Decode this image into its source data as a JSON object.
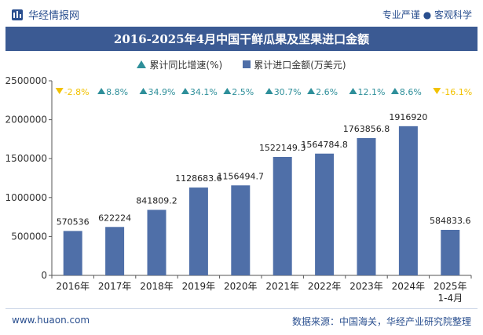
{
  "header": {
    "brand": "华经情报网",
    "slogan": "专业严谨 ● 客观科学"
  },
  "chart_data": {
    "type": "bar+markers",
    "title": "2016-2025年4月中国干鲜瓜果及坚果进口金额",
    "legend": {
      "growth": "累计同比增速(%)",
      "amount": "累计进口金额(万美元)"
    },
    "categories": [
      "2016年",
      "2017年",
      "2018年",
      "2019年",
      "2020年",
      "2021年",
      "2022年",
      "2023年",
      "2024年",
      "2025年\n1-4月"
    ],
    "values": [
      570536,
      622224,
      841809.2,
      1128683.6,
      1156494.7,
      1522149.3,
      1564784.8,
      1763856.8,
      1916920,
      584833.6
    ],
    "value_labels": [
      "570536",
      "622224",
      "841809.2",
      "1128683.6",
      "1156494.7",
      "1522149.3",
      "1564784.8",
      "1763856.8",
      "1916920",
      "584833.6"
    ],
    "growth": [
      "-2.8%",
      "8.8%",
      "34.9%",
      "34.1%",
      "2.5%",
      "30.7%",
      "2.6%",
      "12.1%",
      "8.6%",
      "-16.1%"
    ],
    "growth_values": [
      -2.8,
      8.8,
      34.9,
      34.1,
      2.5,
      30.7,
      2.6,
      12.1,
      8.6,
      -16.1
    ],
    "ylim": [
      0,
      2500000
    ],
    "yticks": [
      "0",
      "500000",
      "1000000",
      "1500000",
      "2000000",
      "2500000"
    ],
    "colors": {
      "bar": "#4f6fa8",
      "up": "#2e8f9a",
      "down": "#f2c200",
      "title_bg": "#3b5a93"
    }
  },
  "footer": {
    "site": "www.huaon.com",
    "source": "数据来源：中国海关，华经产业研究院整理"
  }
}
